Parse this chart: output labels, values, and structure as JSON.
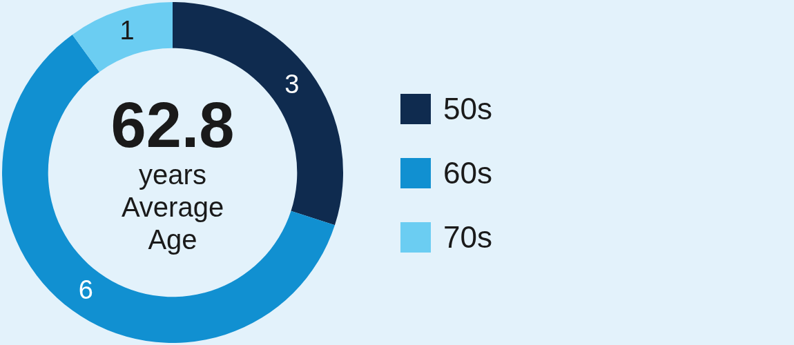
{
  "chart_data": {
    "type": "donut",
    "categories": [
      "50s",
      "60s",
      "70s"
    ],
    "values": [
      3,
      6,
      1
    ],
    "colors": [
      "#0f2b4f",
      "#1190d1",
      "#6bcdf2"
    ],
    "data_labels": true,
    "legend": "right",
    "annotations": [
      "62.8",
      "years Average Age"
    ]
  }
}
